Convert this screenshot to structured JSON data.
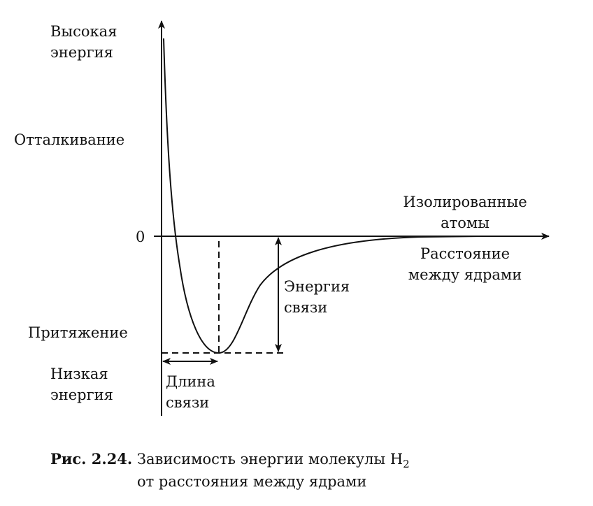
{
  "axis": {
    "y_top": [
      "Высокая",
      "энергия"
    ],
    "y_bottom": [
      "Низкая",
      "энергия"
    ],
    "zero": "0",
    "x_label": [
      "Расстояние",
      "между ядрами"
    ]
  },
  "regions": {
    "repulsion": "Отталкивание",
    "attraction": "Притяжение",
    "isolated": [
      "Изолированные",
      "атомы"
    ]
  },
  "annotations": {
    "bond_energy": [
      "Энергия",
      "связи"
    ],
    "bond_length": [
      "Длина",
      "связи"
    ]
  },
  "caption": {
    "number": "Рис. 2.24.",
    "line1": "Зависимость энергии молекулы H",
    "subscript": "2",
    "line2": "от расстояния между ядрами"
  },
  "colors": {
    "ink": "#111111",
    "background": "#ffffff"
  }
}
